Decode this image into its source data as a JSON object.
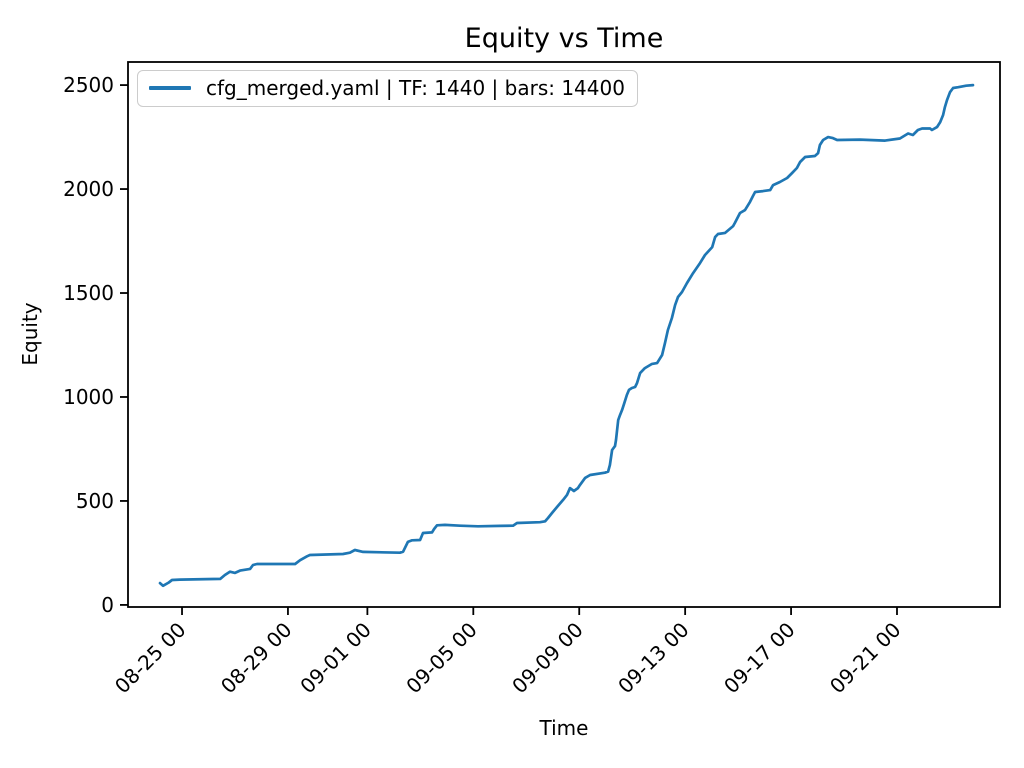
{
  "figure": {
    "title": "Equity vs Time",
    "xlabel": "Time",
    "ylabel": "Equity",
    "legend": {
      "label": "cfg_merged.yaml | TF: 1440 | bars: 14400",
      "line_color": "#1f77b4"
    },
    "background_color": "#ffffff",
    "spine_color": "#000000"
  },
  "chart_data": {
    "type": "line",
    "title": "Equity vs Time",
    "xlabel": "Time",
    "ylabel": "Equity",
    "grid": false,
    "legend_position": "upper left",
    "line_color": "#1f77b4",
    "x_unit": "days since 08-25 00:00",
    "xlim": [
      -2.04,
      30.89
    ],
    "ylim": [
      -10,
      2611
    ],
    "x_ticks": {
      "rotation": 45,
      "values": [
        0,
        4,
        7,
        11,
        15,
        19,
        23,
        27
      ],
      "labels": [
        "08-25 00",
        "08-29 00",
        "09-01 00",
        "09-05 00",
        "09-09 00",
        "09-13 00",
        "09-17 00",
        "09-21 00"
      ]
    },
    "y_ticks": {
      "values": [
        0,
        500,
        1000,
        1500,
        2000,
        2500
      ],
      "labels": [
        "0",
        "500",
        "1000",
        "1500",
        "2000",
        "2500"
      ]
    },
    "series": [
      {
        "name": "cfg_merged.yaml | TF: 1440 | bars: 14400",
        "color": "#1f77b4",
        "points": [
          [
            -0.83,
            105
          ],
          [
            -0.72,
            92
          ],
          [
            -0.5,
            108
          ],
          [
            -0.38,
            120
          ],
          [
            -0.08,
            122
          ],
          [
            1.44,
            125
          ],
          [
            1.62,
            144
          ],
          [
            1.81,
            160
          ],
          [
            2.0,
            154
          ],
          [
            2.19,
            165
          ],
          [
            2.57,
            173
          ],
          [
            2.68,
            192
          ],
          [
            2.83,
            197
          ],
          [
            4.27,
            197
          ],
          [
            4.46,
            215
          ],
          [
            4.72,
            234
          ],
          [
            4.83,
            240
          ],
          [
            6.08,
            245
          ],
          [
            6.34,
            251
          ],
          [
            6.53,
            264
          ],
          [
            6.84,
            255
          ],
          [
            8.23,
            251
          ],
          [
            8.35,
            256
          ],
          [
            8.53,
            303
          ],
          [
            8.69,
            311
          ],
          [
            8.99,
            312
          ],
          [
            9.1,
            346
          ],
          [
            9.44,
            349
          ],
          [
            9.52,
            365
          ],
          [
            9.63,
            383
          ],
          [
            9.93,
            385
          ],
          [
            10.5,
            381
          ],
          [
            11.18,
            378
          ],
          [
            12.01,
            380
          ],
          [
            12.5,
            381
          ],
          [
            12.65,
            394
          ],
          [
            13.52,
            398
          ],
          [
            13.71,
            402
          ],
          [
            13.82,
            418
          ],
          [
            13.97,
            442
          ],
          [
            14.16,
            471
          ],
          [
            14.39,
            505
          ],
          [
            14.54,
            529
          ],
          [
            14.65,
            562
          ],
          [
            14.8,
            548
          ],
          [
            14.95,
            562
          ],
          [
            15.03,
            577
          ],
          [
            15.22,
            611
          ],
          [
            15.41,
            625
          ],
          [
            15.97,
            636
          ],
          [
            16.09,
            641
          ],
          [
            16.16,
            673
          ],
          [
            16.24,
            745
          ],
          [
            16.35,
            764
          ],
          [
            16.39,
            793
          ],
          [
            16.43,
            841
          ],
          [
            16.47,
            889
          ],
          [
            16.54,
            913
          ],
          [
            16.62,
            938
          ],
          [
            16.69,
            966
          ],
          [
            16.8,
            1010
          ],
          [
            16.88,
            1034
          ],
          [
            16.99,
            1043
          ],
          [
            17.11,
            1048
          ],
          [
            17.18,
            1067
          ],
          [
            17.3,
            1115
          ],
          [
            17.48,
            1139
          ],
          [
            17.75,
            1159
          ],
          [
            17.94,
            1163
          ],
          [
            18.13,
            1202
          ],
          [
            18.24,
            1260
          ],
          [
            18.35,
            1322
          ],
          [
            18.5,
            1380
          ],
          [
            18.62,
            1442
          ],
          [
            18.73,
            1481
          ],
          [
            18.88,
            1505
          ],
          [
            19.07,
            1548
          ],
          [
            19.3,
            1596
          ],
          [
            19.56,
            1644
          ],
          [
            19.75,
            1683
          ],
          [
            20.02,
            1721
          ],
          [
            20.13,
            1769
          ],
          [
            20.24,
            1784
          ],
          [
            20.51,
            1789
          ],
          [
            20.81,
            1822
          ],
          [
            20.88,
            1837
          ],
          [
            21.07,
            1885
          ],
          [
            21.26,
            1899
          ],
          [
            21.45,
            1938
          ],
          [
            21.56,
            1966
          ],
          [
            21.64,
            1986
          ],
          [
            21.94,
            1990
          ],
          [
            22.21,
            1995
          ],
          [
            22.32,
            2019
          ],
          [
            22.58,
            2034
          ],
          [
            22.85,
            2053
          ],
          [
            23.04,
            2077
          ],
          [
            23.22,
            2101
          ],
          [
            23.34,
            2130
          ],
          [
            23.53,
            2154
          ],
          [
            23.9,
            2159
          ],
          [
            24.02,
            2173
          ],
          [
            24.09,
            2212
          ],
          [
            24.21,
            2236
          ],
          [
            24.4,
            2250
          ],
          [
            24.58,
            2245
          ],
          [
            24.74,
            2236
          ],
          [
            25.6,
            2238
          ],
          [
            26.55,
            2233
          ],
          [
            27.11,
            2243
          ],
          [
            27.42,
            2267
          ],
          [
            27.6,
            2260
          ],
          [
            27.79,
            2284
          ],
          [
            27.95,
            2291
          ],
          [
            28.25,
            2291
          ],
          [
            28.32,
            2284
          ],
          [
            28.51,
            2298
          ],
          [
            28.63,
            2322
          ],
          [
            28.74,
            2356
          ],
          [
            28.81,
            2394
          ],
          [
            28.89,
            2428
          ],
          [
            29.0,
            2466
          ],
          [
            29.12,
            2486
          ],
          [
            29.31,
            2490
          ],
          [
            29.49,
            2494
          ],
          [
            29.61,
            2497
          ],
          [
            29.87,
            2500
          ]
        ]
      }
    ]
  }
}
